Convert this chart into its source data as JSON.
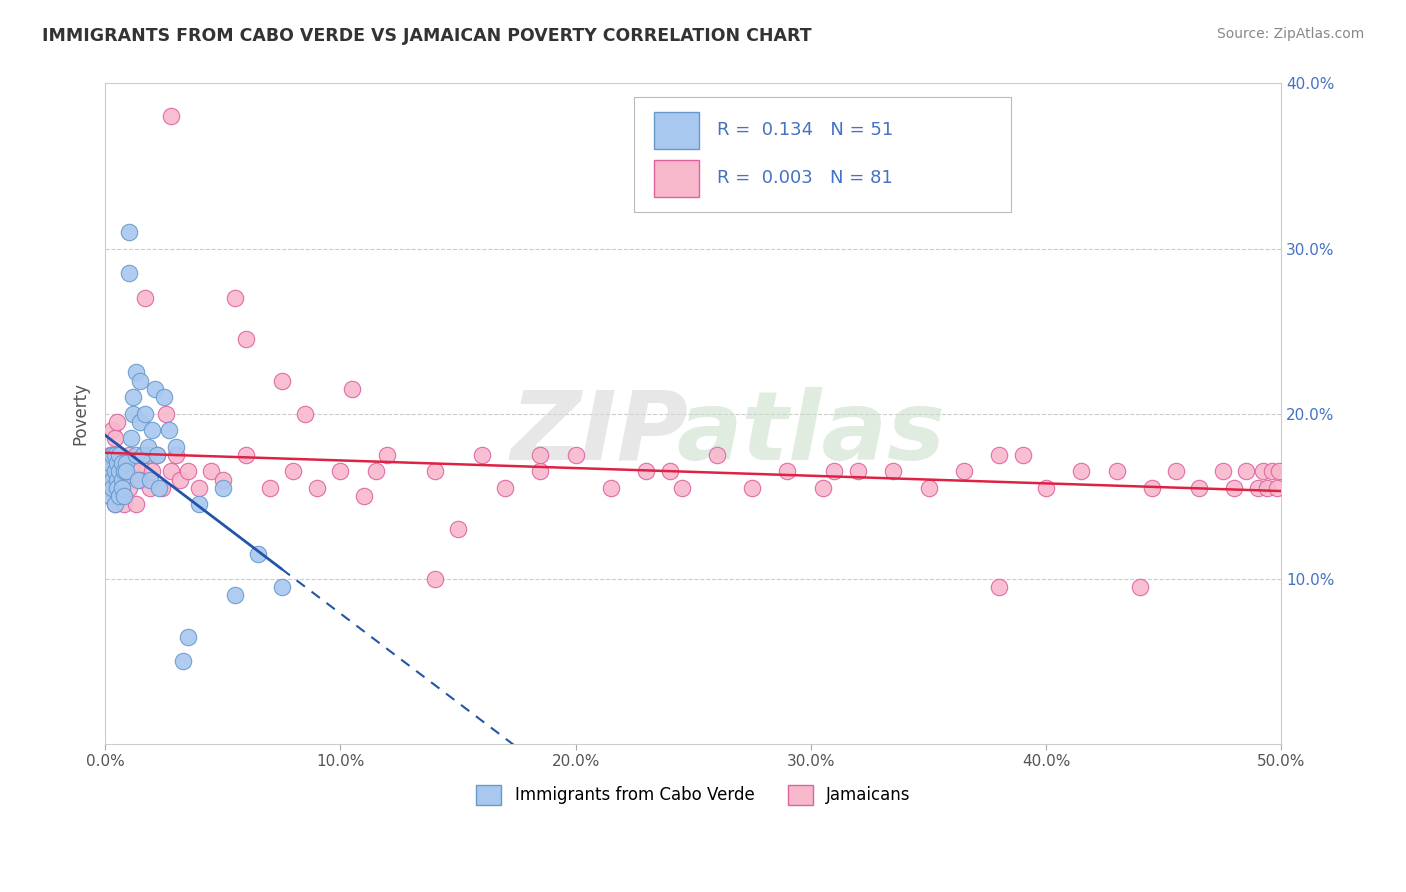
{
  "title": "IMMIGRANTS FROM CABO VERDE VS JAMAICAN POVERTY CORRELATION CHART",
  "source": "Source: ZipAtlas.com",
  "ylabel": "Poverty",
  "xmin": 0.0,
  "xmax": 0.5,
  "ymin": 0.0,
  "ymax": 0.4,
  "cabo_verde_color": "#a8c8f0",
  "jamaicans_color": "#f7b8cc",
  "cabo_verde_edge": "#6699cc",
  "jamaicans_edge": "#e060a0",
  "cabo_verde_R": 0.134,
  "cabo_verde_N": 51,
  "jamaicans_R": 0.003,
  "jamaicans_N": 81,
  "cabo_verde_line_color": "#2255aa",
  "jamaicans_line_color": "#dd2244",
  "legend_label_1": "Immigrants from Cabo Verde",
  "legend_label_2": "Jamaicans",
  "cabo_verde_x": [
    0.001,
    0.001,
    0.002,
    0.002,
    0.003,
    0.003,
    0.003,
    0.004,
    0.004,
    0.004,
    0.005,
    0.005,
    0.005,
    0.006,
    0.006,
    0.006,
    0.007,
    0.007,
    0.007,
    0.008,
    0.008,
    0.009,
    0.009,
    0.01,
    0.01,
    0.011,
    0.012,
    0.012,
    0.013,
    0.013,
    0.014,
    0.015,
    0.015,
    0.016,
    0.017,
    0.018,
    0.019,
    0.02,
    0.021,
    0.022,
    0.023,
    0.025,
    0.027,
    0.03,
    0.033,
    0.035,
    0.04,
    0.05,
    0.055,
    0.065,
    0.075
  ],
  "cabo_verde_y": [
    0.165,
    0.155,
    0.17,
    0.15,
    0.16,
    0.175,
    0.155,
    0.165,
    0.145,
    0.175,
    0.16,
    0.17,
    0.155,
    0.165,
    0.175,
    0.15,
    0.16,
    0.17,
    0.155,
    0.165,
    0.15,
    0.17,
    0.165,
    0.31,
    0.285,
    0.185,
    0.21,
    0.2,
    0.175,
    0.225,
    0.16,
    0.22,
    0.195,
    0.175,
    0.2,
    0.18,
    0.16,
    0.19,
    0.215,
    0.175,
    0.155,
    0.21,
    0.19,
    0.18,
    0.05,
    0.065,
    0.145,
    0.155,
    0.09,
    0.115,
    0.095
  ],
  "jamaicans_x": [
    0.001,
    0.002,
    0.002,
    0.003,
    0.003,
    0.003,
    0.004,
    0.004,
    0.004,
    0.005,
    0.005,
    0.005,
    0.006,
    0.006,
    0.007,
    0.007,
    0.008,
    0.008,
    0.009,
    0.01,
    0.01,
    0.011,
    0.012,
    0.013,
    0.014,
    0.015,
    0.016,
    0.017,
    0.018,
    0.019,
    0.02,
    0.022,
    0.024,
    0.026,
    0.028,
    0.03,
    0.032,
    0.035,
    0.04,
    0.045,
    0.05,
    0.06,
    0.07,
    0.08,
    0.09,
    0.1,
    0.11,
    0.12,
    0.14,
    0.16,
    0.17,
    0.185,
    0.2,
    0.215,
    0.23,
    0.245,
    0.26,
    0.275,
    0.29,
    0.305,
    0.32,
    0.335,
    0.35,
    0.365,
    0.38,
    0.39,
    0.4,
    0.415,
    0.43,
    0.445,
    0.455,
    0.465,
    0.475,
    0.48,
    0.485,
    0.49,
    0.492,
    0.494,
    0.496,
    0.498,
    0.499
  ],
  "jamaicans_y": [
    0.165,
    0.155,
    0.175,
    0.16,
    0.175,
    0.19,
    0.145,
    0.165,
    0.185,
    0.155,
    0.17,
    0.195,
    0.16,
    0.175,
    0.15,
    0.17,
    0.145,
    0.165,
    0.16,
    0.155,
    0.175,
    0.165,
    0.17,
    0.145,
    0.165,
    0.16,
    0.175,
    0.27,
    0.175,
    0.155,
    0.165,
    0.175,
    0.155,
    0.2,
    0.165,
    0.175,
    0.16,
    0.165,
    0.155,
    0.165,
    0.16,
    0.175,
    0.155,
    0.165,
    0.155,
    0.165,
    0.15,
    0.175,
    0.165,
    0.175,
    0.155,
    0.165,
    0.175,
    0.155,
    0.165,
    0.155,
    0.175,
    0.155,
    0.165,
    0.155,
    0.165,
    0.165,
    0.155,
    0.165,
    0.175,
    0.175,
    0.155,
    0.165,
    0.165,
    0.155,
    0.165,
    0.155,
    0.165,
    0.155,
    0.165,
    0.155,
    0.165,
    0.155,
    0.165,
    0.155,
    0.165
  ],
  "jamaicans_outlier_x": [
    0.028,
    0.055,
    0.06,
    0.075,
    0.085,
    0.105,
    0.115,
    0.14,
    0.15,
    0.185,
    0.24,
    0.31,
    0.38,
    0.44
  ],
  "jamaicans_outlier_y": [
    0.38,
    0.27,
    0.245,
    0.22,
    0.2,
    0.215,
    0.165,
    0.1,
    0.13,
    0.175,
    0.165,
    0.165,
    0.095,
    0.095
  ]
}
